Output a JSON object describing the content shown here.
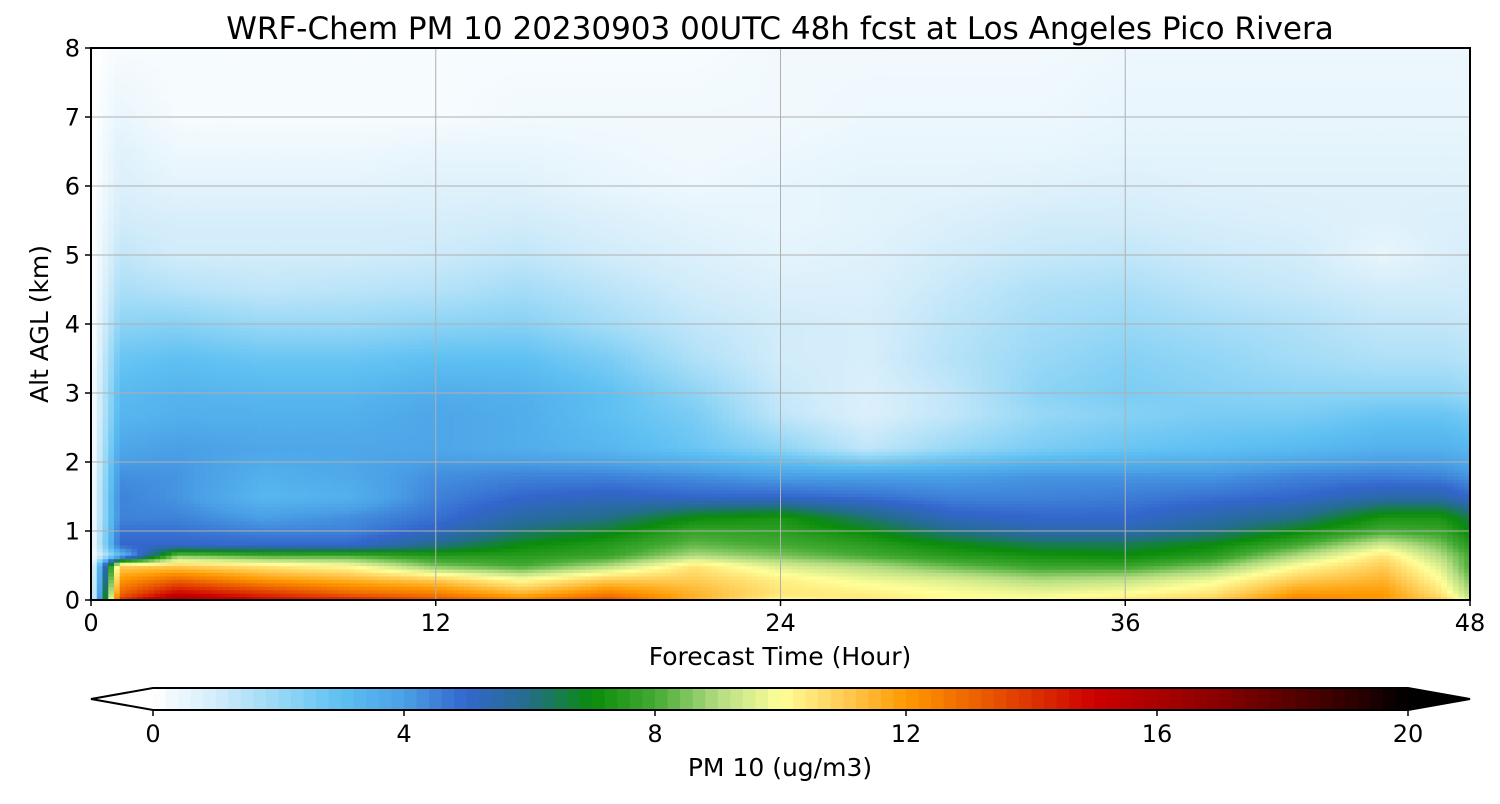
{
  "chart_data": {
    "type": "heatmap",
    "title": "WRF-Chem PM 10  20230903 00UTC 48h fcst at Los Angeles Pico Rivera",
    "xlabel": "Forecast Time (Hour)",
    "ylabel": "Alt AGL (km)",
    "xlim": [
      0,
      48
    ],
    "ylim": [
      0,
      8
    ],
    "x_ticks": [
      0,
      12,
      24,
      36,
      48
    ],
    "y_ticks": [
      0,
      1,
      2,
      3,
      4,
      5,
      6,
      7,
      8
    ],
    "grid": true,
    "hours": [
      0,
      1,
      3,
      6,
      9,
      12,
      15,
      18,
      21,
      24,
      27,
      30,
      33,
      36,
      39,
      42,
      45,
      47,
      48
    ],
    "altitudes_km": [
      0,
      0.1,
      0.3,
      0.5,
      0.65,
      0.8,
      1.0,
      1.2,
      1.5,
      1.8,
      2.2,
      2.7,
      3.0,
      3.5,
      4.0,
      4.5,
      5.0,
      5.5,
      6.0,
      6.5,
      7.0,
      8.0
    ],
    "values": [
      [
        0.0,
        14.0,
        16.5,
        15.0,
        14.5,
        13.5,
        12.5,
        13.5,
        11.5,
        10.0,
        10.5,
        10.0,
        10.0,
        10.5,
        11.0,
        12.5,
        12.0,
        11.0,
        9.5
      ],
      [
        0.0,
        13.0,
        15.0,
        14.0,
        13.0,
        12.5,
        11.5,
        12.5,
        11.5,
        10.5,
        10.3,
        10.0,
        9.8,
        10.0,
        10.5,
        12.0,
        12.0,
        10.5,
        9.0
      ],
      [
        0.0,
        12.0,
        13.0,
        12.0,
        11.5,
        11.0,
        10.0,
        11.0,
        11.0,
        10.3,
        9.8,
        9.5,
        9.0,
        9.2,
        9.8,
        11.0,
        11.5,
        10.0,
        8.5
      ],
      [
        0.0,
        11.0,
        11.0,
        10.5,
        10.0,
        8.5,
        8.0,
        9.0,
        10.5,
        9.5,
        9.0,
        8.3,
        7.8,
        7.8,
        8.5,
        10.0,
        11.0,
        9.5,
        8.0
      ],
      [
        0.0,
        3.0,
        8.5,
        8.0,
        8.0,
        7.5,
        7.5,
        7.8,
        9.0,
        8.5,
        8.0,
        7.5,
        7.2,
        7.0,
        7.5,
        9.0,
        10.5,
        9.0,
        8.0
      ],
      [
        0.0,
        5.0,
        5.0,
        5.0,
        5.0,
        6.0,
        7.0,
        7.5,
        8.3,
        8.0,
        7.6,
        7.0,
        6.5,
        6.5,
        7.0,
        8.0,
        9.5,
        8.5,
        7.5
      ],
      [
        0.0,
        4.8,
        4.8,
        4.5,
        4.5,
        5.2,
        6.2,
        6.8,
        7.8,
        7.6,
        7.0,
        6.0,
        5.5,
        5.5,
        6.0,
        7.0,
        8.0,
        7.8,
        7.0
      ],
      [
        0.0,
        4.5,
        4.5,
        4.0,
        4.3,
        4.8,
        5.6,
        6.0,
        7.0,
        7.3,
        6.2,
        5.2,
        5.0,
        5.0,
        5.5,
        6.0,
        7.3,
        7.3,
        6.5
      ],
      [
        0.0,
        4.5,
        4.2,
        3.3,
        3.5,
        4.5,
        5.0,
        5.2,
        5.0,
        5.0,
        4.8,
        4.5,
        4.5,
        4.6,
        4.8,
        5.0,
        5.5,
        5.5,
        5.0
      ],
      [
        0.0,
        4.3,
        4.2,
        3.5,
        3.7,
        4.3,
        4.5,
        4.5,
        4.3,
        4.0,
        4.0,
        4.0,
        4.2,
        4.2,
        4.2,
        4.5,
        4.6,
        4.5,
        4.2
      ],
      [
        0.0,
        3.8,
        4.0,
        3.8,
        3.8,
        3.8,
        3.6,
        3.3,
        2.8,
        2.2,
        1.3,
        2.0,
        2.5,
        2.8,
        3.0,
        3.2,
        3.5,
        3.5,
        3.3
      ],
      [
        0.0,
        3.3,
        3.5,
        3.5,
        3.5,
        3.8,
        3.6,
        3.0,
        2.5,
        1.3,
        0.8,
        1.3,
        2.0,
        2.3,
        2.5,
        2.5,
        2.8,
        2.8,
        2.6
      ],
      [
        0.0,
        3.2,
        3.4,
        3.3,
        3.3,
        3.6,
        3.5,
        3.0,
        2.2,
        1.2,
        0.8,
        1.3,
        2.2,
        2.5,
        2.3,
        2.2,
        2.2,
        2.2,
        2.0
      ],
      [
        0.0,
        2.8,
        3.0,
        2.8,
        2.8,
        3.0,
        3.0,
        2.5,
        1.6,
        1.0,
        0.9,
        1.5,
        2.0,
        2.3,
        2.1,
        1.8,
        1.6,
        1.6,
        1.5
      ],
      [
        0.0,
        2.2,
        2.3,
        2.0,
        2.0,
        2.2,
        2.3,
        1.8,
        1.3,
        1.0,
        0.9,
        1.4,
        1.8,
        2.0,
        1.8,
        1.6,
        1.3,
        1.3,
        1.2
      ],
      [
        0.0,
        1.7,
        1.5,
        1.3,
        1.4,
        1.5,
        1.8,
        1.4,
        1.0,
        0.8,
        0.8,
        1.2,
        1.6,
        1.7,
        1.4,
        1.2,
        1.0,
        1.0,
        1.0
      ],
      [
        0.0,
        1.3,
        1.0,
        1.0,
        1.0,
        1.1,
        1.3,
        1.0,
        0.8,
        0.6,
        0.7,
        1.0,
        1.2,
        1.3,
        1.1,
        1.0,
        0.5,
        0.8,
        0.9
      ],
      [
        0.0,
        1.0,
        0.9,
        0.9,
        0.9,
        0.9,
        1.0,
        0.8,
        0.6,
        0.5,
        0.6,
        0.8,
        1.0,
        1.0,
        0.9,
        0.8,
        0.7,
        0.8,
        0.8
      ],
      [
        0.0,
        0.8,
        0.6,
        0.6,
        0.6,
        0.7,
        0.7,
        0.5,
        0.4,
        0.5,
        0.6,
        0.6,
        0.7,
        0.8,
        0.7,
        0.7,
        0.7,
        0.7,
        0.7
      ],
      [
        0.0,
        0.7,
        0.4,
        0.4,
        0.4,
        0.5,
        0.5,
        0.4,
        0.3,
        0.4,
        0.5,
        0.5,
        0.5,
        0.6,
        0.6,
        0.6,
        0.6,
        0.6,
        0.6
      ],
      [
        0.0,
        0.5,
        0.2,
        0.2,
        0.2,
        0.2,
        0.3,
        0.3,
        0.3,
        0.3,
        0.4,
        0.4,
        0.4,
        0.5,
        0.5,
        0.5,
        0.5,
        0.5,
        0.5
      ],
      [
        0.0,
        0.2,
        0.2,
        0.2,
        0.2,
        0.2,
        0.2,
        0.2,
        0.2,
        0.3,
        0.3,
        0.3,
        0.3,
        0.4,
        0.4,
        0.4,
        0.4,
        0.4,
        0.4
      ]
    ],
    "colorbar": {
      "label": "PM 10  (ug/m3)",
      "min": 0,
      "max": 20,
      "ticks": [
        0,
        4,
        8,
        12,
        16,
        20
      ],
      "extend": "both",
      "extend_colors": {
        "low": "#ffffff",
        "high": "#000000"
      },
      "color_stops": [
        {
          "v": 0.0,
          "c": "#ffffff"
        },
        {
          "v": 1.0,
          "c": "#d2ecfa"
        },
        {
          "v": 2.0,
          "c": "#98d8f6"
        },
        {
          "v": 3.0,
          "c": "#5ec0f2"
        },
        {
          "v": 4.0,
          "c": "#4aa0e6"
        },
        {
          "v": 5.0,
          "c": "#3366cc"
        },
        {
          "v": 6.0,
          "c": "#236e8a"
        },
        {
          "v": 7.0,
          "c": "#0a8c0a"
        },
        {
          "v": 8.0,
          "c": "#44aa33"
        },
        {
          "v": 9.0,
          "c": "#b2dc80"
        },
        {
          "v": 10.0,
          "c": "#ffff99"
        },
        {
          "v": 11.0,
          "c": "#ffcc55"
        },
        {
          "v": 12.0,
          "c": "#ff9900"
        },
        {
          "v": 13.0,
          "c": "#ee6600"
        },
        {
          "v": 15.0,
          "c": "#cc0000"
        },
        {
          "v": 17.0,
          "c": "#880000"
        },
        {
          "v": 19.0,
          "c": "#330000"
        },
        {
          "v": 20.0,
          "c": "#000000"
        }
      ]
    }
  }
}
